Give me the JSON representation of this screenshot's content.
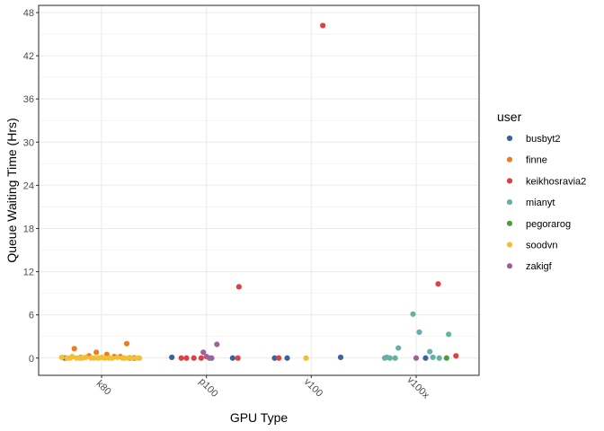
{
  "chart_data": {
    "type": "scatter",
    "title": "",
    "xlabel": "GPU Type",
    "ylabel": "Queue Waiting Time (Hrs)",
    "categories": [
      "k80",
      "p100",
      "v100",
      "v100x"
    ],
    "y_ticks": [
      0,
      6,
      12,
      18,
      24,
      30,
      36,
      42,
      48
    ],
    "ylim": [
      -2.4,
      49
    ],
    "grid": true,
    "legend": {
      "title": "user",
      "position": "right"
    },
    "series": [
      {
        "name": "busbyt2",
        "color": "#3a62a0",
        "points": [
          {
            "category": "k80",
            "jitter": -0.35,
            "y": 0.0
          },
          {
            "category": "k80",
            "jitter": 0.27,
            "y": 0.0
          },
          {
            "category": "k80",
            "jitter": 0.31,
            "y": 0.0
          },
          {
            "category": "p100",
            "jitter": -0.33,
            "y": 0.1
          },
          {
            "category": "p100",
            "jitter": 0.25,
            "y": 0.0
          },
          {
            "category": "v100",
            "jitter": -0.35,
            "y": 0.0
          },
          {
            "category": "v100",
            "jitter": -0.23,
            "y": 0.0
          },
          {
            "category": "v100",
            "jitter": 0.28,
            "y": 0.1
          },
          {
            "category": "v100x",
            "jitter": 0.09,
            "y": 0.0
          }
        ]
      },
      {
        "name": "finne",
        "color": "#ee7d22",
        "points": [
          {
            "category": "k80",
            "jitter": -0.26,
            "y": 1.3
          },
          {
            "category": "k80",
            "jitter": -0.05,
            "y": 0.8
          },
          {
            "category": "k80",
            "jitter": 0.05,
            "y": 0.5
          },
          {
            "category": "k80",
            "jitter": 0.24,
            "y": 2.0
          },
          {
            "category": "k80",
            "jitter": -0.12,
            "y": 0.3
          },
          {
            "category": "k80",
            "jitter": 0.12,
            "y": 0.2
          },
          {
            "category": "k80",
            "jitter": -0.2,
            "y": 0.1
          },
          {
            "category": "k80",
            "jitter": 0.18,
            "y": 0.2
          }
        ]
      },
      {
        "name": "keikhosravia2",
        "color": "#dd4143",
        "points": [
          {
            "category": "p100",
            "jitter": -0.24,
            "y": 0.0
          },
          {
            "category": "p100",
            "jitter": -0.19,
            "y": 0.0
          },
          {
            "category": "p100",
            "jitter": -0.12,
            "y": 0.0
          },
          {
            "category": "p100",
            "jitter": -0.05,
            "y": 0.0
          },
          {
            "category": "p100",
            "jitter": 0.31,
            "y": 9.9
          },
          {
            "category": "p100",
            "jitter": 0.3,
            "y": 0.0
          },
          {
            "category": "v100",
            "jitter": -0.31,
            "y": 0.0
          },
          {
            "category": "v100",
            "jitter": 0.11,
            "y": 46.2
          },
          {
            "category": "v100x",
            "jitter": 0.21,
            "y": 10.3
          },
          {
            "category": "v100x",
            "jitter": 0.38,
            "y": 0.3
          }
        ]
      },
      {
        "name": "mianyt",
        "color": "#64b1a5",
        "points": [
          {
            "category": "v100x",
            "jitter": -0.3,
            "y": 0.0
          },
          {
            "category": "v100x",
            "jitter": -0.25,
            "y": 0.0
          },
          {
            "category": "v100x",
            "jitter": -0.2,
            "y": 0.0
          },
          {
            "category": "v100x",
            "jitter": -0.17,
            "y": 1.4
          },
          {
            "category": "v100x",
            "jitter": -0.03,
            "y": 6.1
          },
          {
            "category": "v100x",
            "jitter": 0.03,
            "y": 3.6
          },
          {
            "category": "v100x",
            "jitter": 0.13,
            "y": 0.9
          },
          {
            "category": "v100x",
            "jitter": 0.16,
            "y": 0.1
          },
          {
            "category": "v100x",
            "jitter": 0.22,
            "y": 0.0
          },
          {
            "category": "v100x",
            "jitter": 0.31,
            "y": 3.3
          },
          {
            "category": "v100x",
            "jitter": -0.28,
            "y": 0.1
          }
        ]
      },
      {
        "name": "pegorarog",
        "color": "#4f9a43",
        "points": [
          {
            "category": "v100x",
            "jitter": 0.29,
            "y": 0.0
          }
        ]
      },
      {
        "name": "soodvn",
        "color": "#f1bf38",
        "points": [
          {
            "category": "k80",
            "jitter": -0.38,
            "y": 0.1
          },
          {
            "category": "k80",
            "jitter": -0.33,
            "y": 0.0
          },
          {
            "category": "k80",
            "jitter": -0.3,
            "y": 0.0
          },
          {
            "category": "k80",
            "jitter": -0.28,
            "y": 0.2
          },
          {
            "category": "k80",
            "jitter": -0.24,
            "y": 0.0
          },
          {
            "category": "k80",
            "jitter": -0.21,
            "y": 0.0
          },
          {
            "category": "k80",
            "jitter": -0.18,
            "y": 0.0
          },
          {
            "category": "k80",
            "jitter": -0.15,
            "y": 0.1
          },
          {
            "category": "k80",
            "jitter": -0.1,
            "y": 0.0
          },
          {
            "category": "k80",
            "jitter": -0.07,
            "y": 0.0
          },
          {
            "category": "k80",
            "jitter": -0.03,
            "y": 0.0
          },
          {
            "category": "k80",
            "jitter": 0.0,
            "y": 0.1
          },
          {
            "category": "k80",
            "jitter": 0.03,
            "y": 0.0
          },
          {
            "category": "k80",
            "jitter": 0.07,
            "y": 0.0
          },
          {
            "category": "k80",
            "jitter": 0.1,
            "y": 0.0
          },
          {
            "category": "k80",
            "jitter": 0.15,
            "y": 0.1
          },
          {
            "category": "k80",
            "jitter": 0.2,
            "y": 0.0
          },
          {
            "category": "k80",
            "jitter": 0.22,
            "y": 0.0
          },
          {
            "category": "k80",
            "jitter": 0.26,
            "y": 0.0
          },
          {
            "category": "k80",
            "jitter": 0.29,
            "y": 0.0
          },
          {
            "category": "k80",
            "jitter": 0.33,
            "y": 0.0
          },
          {
            "category": "k80",
            "jitter": 0.36,
            "y": 0.0
          },
          {
            "category": "v100",
            "jitter": -0.05,
            "y": 0.0
          }
        ]
      },
      {
        "name": "zakigf",
        "color": "#9a6498",
        "points": [
          {
            "category": "p100",
            "jitter": -0.03,
            "y": 0.8
          },
          {
            "category": "p100",
            "jitter": 0.0,
            "y": 0.2
          },
          {
            "category": "p100",
            "jitter": 0.03,
            "y": 0.0
          },
          {
            "category": "p100",
            "jitter": 0.05,
            "y": 0.0
          },
          {
            "category": "p100",
            "jitter": 0.1,
            "y": 1.9
          },
          {
            "category": "v100x",
            "jitter": 0.0,
            "y": 0.0
          }
        ]
      }
    ]
  }
}
